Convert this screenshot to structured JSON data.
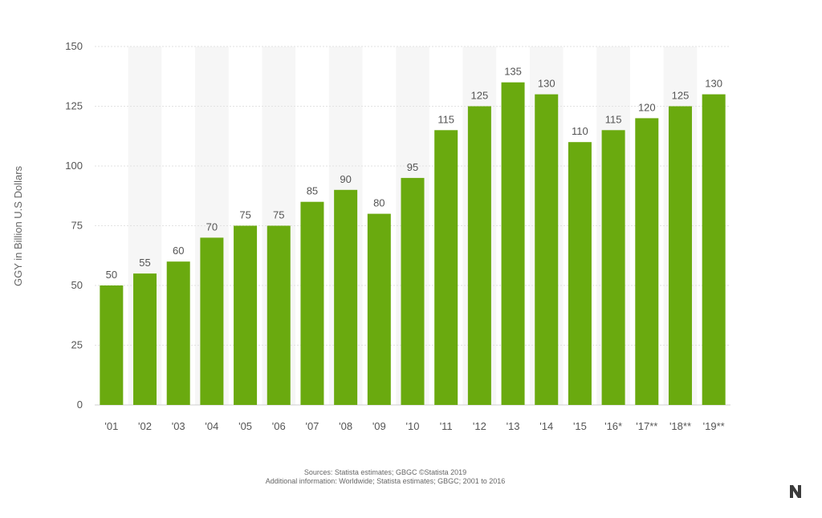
{
  "chart_data": {
    "type": "bar",
    "categories": [
      "'01",
      "'02",
      "'03",
      "'04",
      "'05",
      "'06",
      "'07",
      "'08",
      "'09",
      "'10",
      "'11",
      "'12",
      "'13",
      "'14",
      "'15",
      "'16*",
      "'17**",
      "'18**",
      "'19**"
    ],
    "values": [
      50,
      55,
      60,
      70,
      75,
      75,
      85,
      90,
      80,
      95,
      115,
      125,
      135,
      130,
      110,
      115,
      120,
      125,
      130
    ],
    "title": "",
    "xlabel": "",
    "ylabel": "GGY in Billion U.S Dollars",
    "ylim": [
      0,
      150
    ],
    "yticks": [
      0,
      25,
      50,
      75,
      100,
      125,
      150
    ],
    "grid": true,
    "bar_color": "#6aaa0f"
  },
  "footer": {
    "source_line1": "Sources: Statista estimates; GBGC ©Statista 2019",
    "source_line2": "Additional information: Worldwide; Statista estimates; GBGC; 2001 to 2016"
  },
  "logo_icon": "brand-logo-icon"
}
